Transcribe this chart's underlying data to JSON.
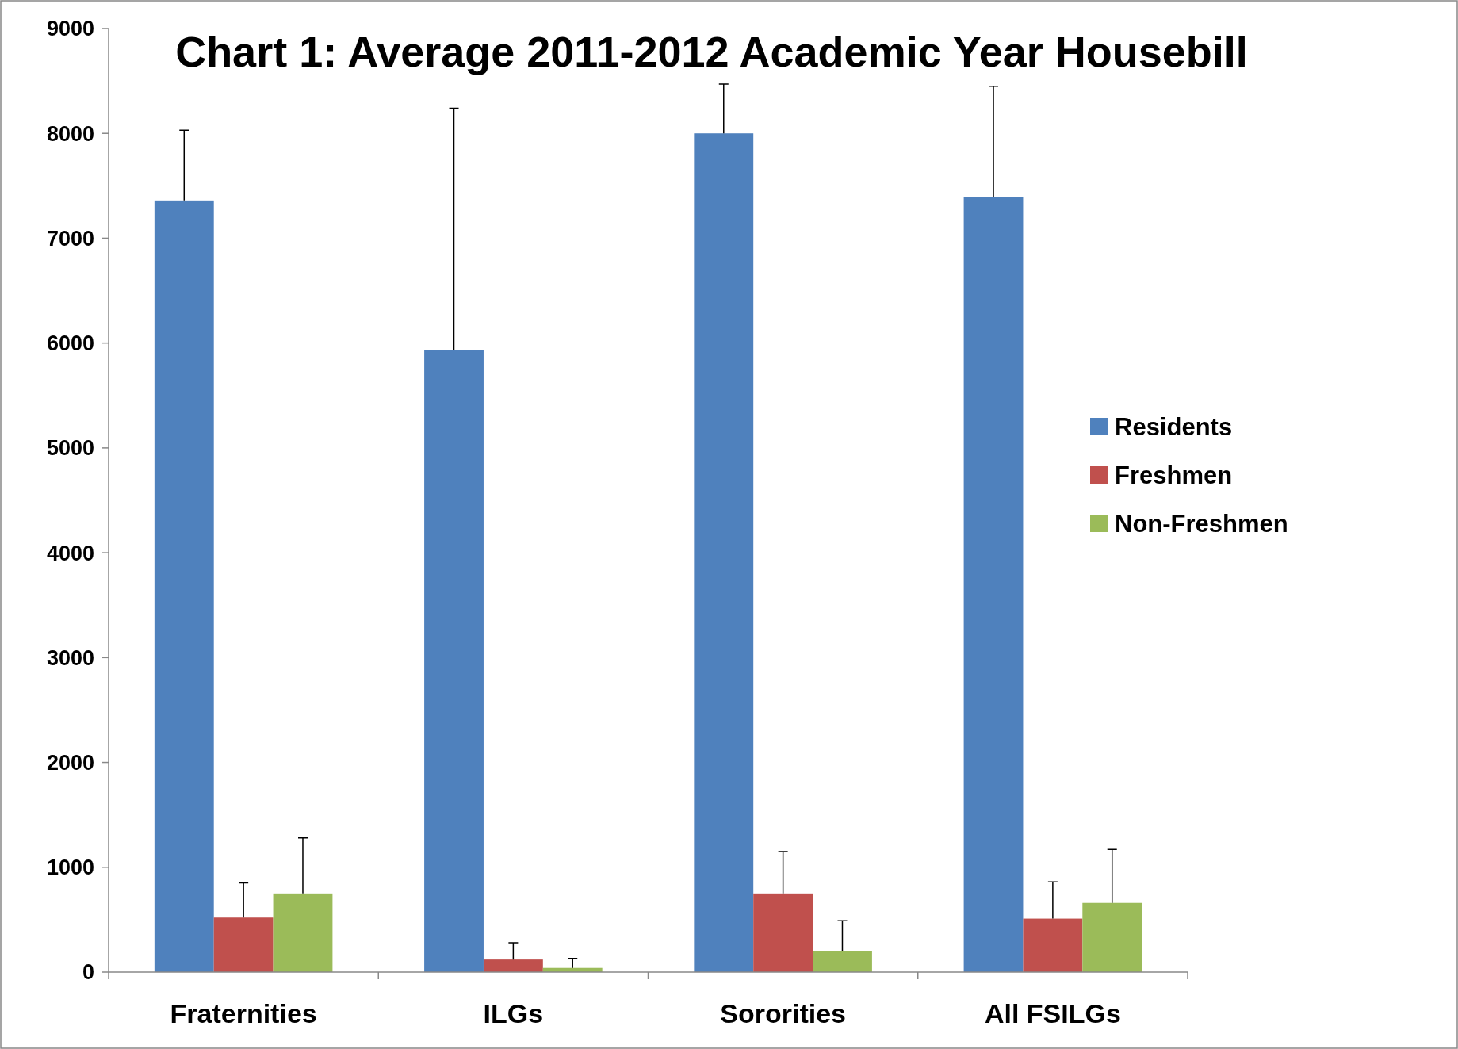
{
  "chart_data": {
    "type": "bar",
    "title": "Chart 1: Average 2011-2012 Academic Year Housebill",
    "categories": [
      "Fraternities",
      "ILGs",
      "Sororities",
      "All FSILGs"
    ],
    "series": [
      {
        "name": "Residents",
        "color": "#4f81bd",
        "values": [
          7360,
          5930,
          8000,
          7390
        ],
        "errors": [
          [
            7360,
            8030
          ],
          [
            5930,
            8240
          ],
          [
            8000,
            8470
          ],
          [
            7390,
            8450
          ]
        ]
      },
      {
        "name": "Freshmen",
        "color": "#c0504d",
        "values": [
          520,
          120,
          750,
          510
        ],
        "errors": [
          [
            520,
            850
          ],
          [
            120,
            280
          ],
          [
            750,
            1150
          ],
          [
            510,
            860
          ]
        ]
      },
      {
        "name": "Non-Freshmen",
        "color": "#9bbb59",
        "values": [
          750,
          40,
          200,
          660
        ],
        "errors": [
          [
            750,
            1280
          ],
          [
            40,
            130
          ],
          [
            200,
            490
          ],
          [
            660,
            1170
          ]
        ]
      }
    ],
    "ylim": [
      0,
      9000
    ],
    "yticks": [
      0,
      1000,
      2000,
      3000,
      4000,
      5000,
      6000,
      7000,
      8000,
      9000
    ],
    "grid": false,
    "legend": "right"
  }
}
